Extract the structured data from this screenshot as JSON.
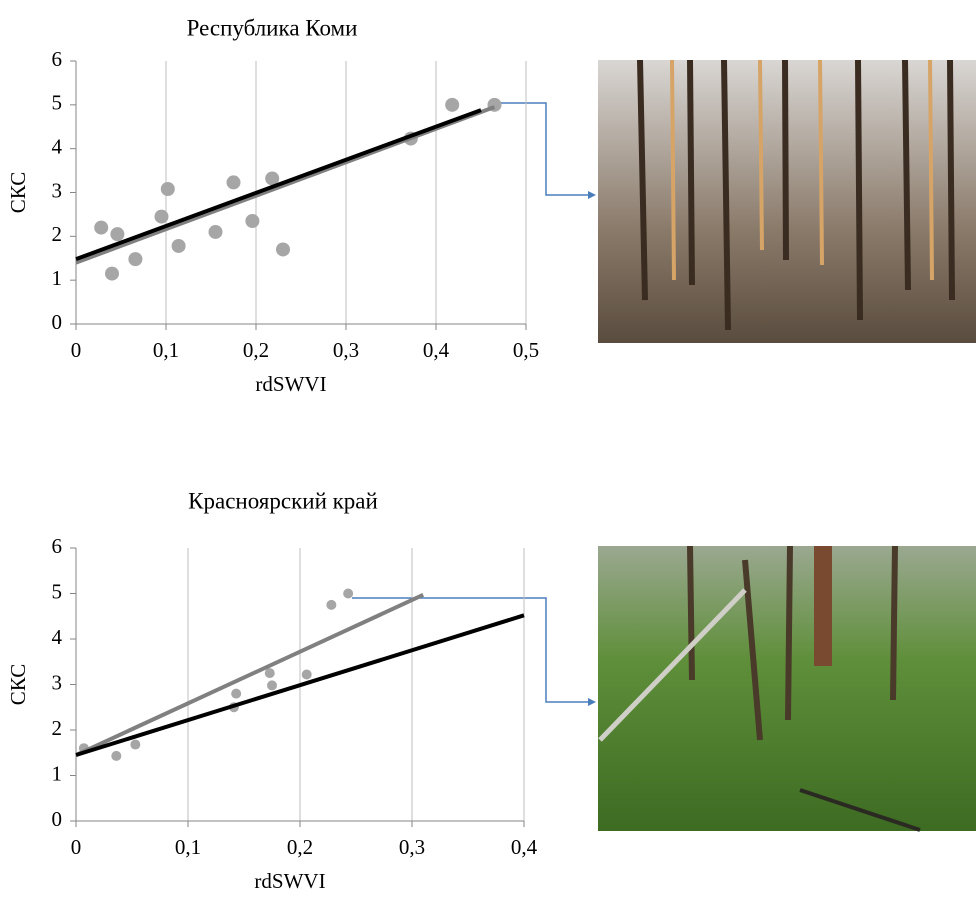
{
  "chart_data": [
    {
      "type": "scatter",
      "title": "Республика Коми",
      "x_label": "rdSWVI",
      "y_label": "СКС",
      "x": [
        0.028,
        0.04,
        0.046,
        0.066,
        0.095,
        0.102,
        0.114,
        0.155,
        0.175,
        0.196,
        0.218,
        0.23,
        0.372,
        0.418,
        0.465
      ],
      "values": [
        2.2,
        1.15,
        2.05,
        1.48,
        2.45,
        3.08,
        1.78,
        2.1,
        3.23,
        2.35,
        3.32,
        1.7,
        4.23,
        5.0,
        5.0
      ],
      "color": "#a6a6a6",
      "trend_lines": [
        {
          "color": "#808080",
          "x": [
            0,
            0.465
          ],
          "y": [
            1.4,
            4.95
          ]
        },
        {
          "color": "#000000",
          "x": [
            0,
            0.45
          ],
          "y": [
            1.48,
            4.88
          ]
        }
      ],
      "xlim": [
        0,
        0.5
      ],
      "ylim": [
        0,
        6
      ],
      "xticks": [
        0,
        {
          "value": 0.1,
          "label": "0,1"
        },
        {
          "value": 0.2,
          "label": "0,2"
        },
        {
          "value": 0.3,
          "label": "0,3"
        },
        {
          "value": 0.4,
          "label": "0,4"
        },
        {
          "value": 0.5,
          "label": "0,5"
        }
      ],
      "yticks": [
        0,
        1,
        2,
        3,
        4,
        5,
        6
      ],
      "grid": true
    },
    {
      "type": "scatter",
      "title": "Красноярский край",
      "x_label": "rdSWVI",
      "y_label": "СКС",
      "x": [
        0.007,
        0.036,
        0.053,
        0.141,
        0.143,
        0.173,
        0.175,
        0.206,
        0.228,
        0.243
      ],
      "values": [
        1.6,
        1.43,
        1.68,
        2.5,
        2.8,
        3.25,
        2.98,
        3.22,
        4.75,
        5.0
      ],
      "color": "#a6a6a6",
      "trend_lines": [
        {
          "color": "#808080",
          "x": [
            0,
            0.31
          ],
          "y": [
            1.45,
            4.97
          ]
        },
        {
          "color": "#000000",
          "x": [
            0,
            0.4
          ],
          "y": [
            1.45,
            4.52
          ]
        }
      ],
      "xlim": [
        0,
        0.4
      ],
      "ylim": [
        0,
        6
      ],
      "xticks": [
        0,
        {
          "value": 0.1,
          "label": "0,1"
        },
        {
          "value": 0.2,
          "label": "0,2"
        },
        {
          "value": 0.3,
          "label": "0,3"
        },
        {
          "value": 0.4,
          "label": "0,4"
        }
      ],
      "yticks": [
        0,
        1,
        2,
        3,
        4,
        5,
        6
      ],
      "grid": true
    }
  ]
}
